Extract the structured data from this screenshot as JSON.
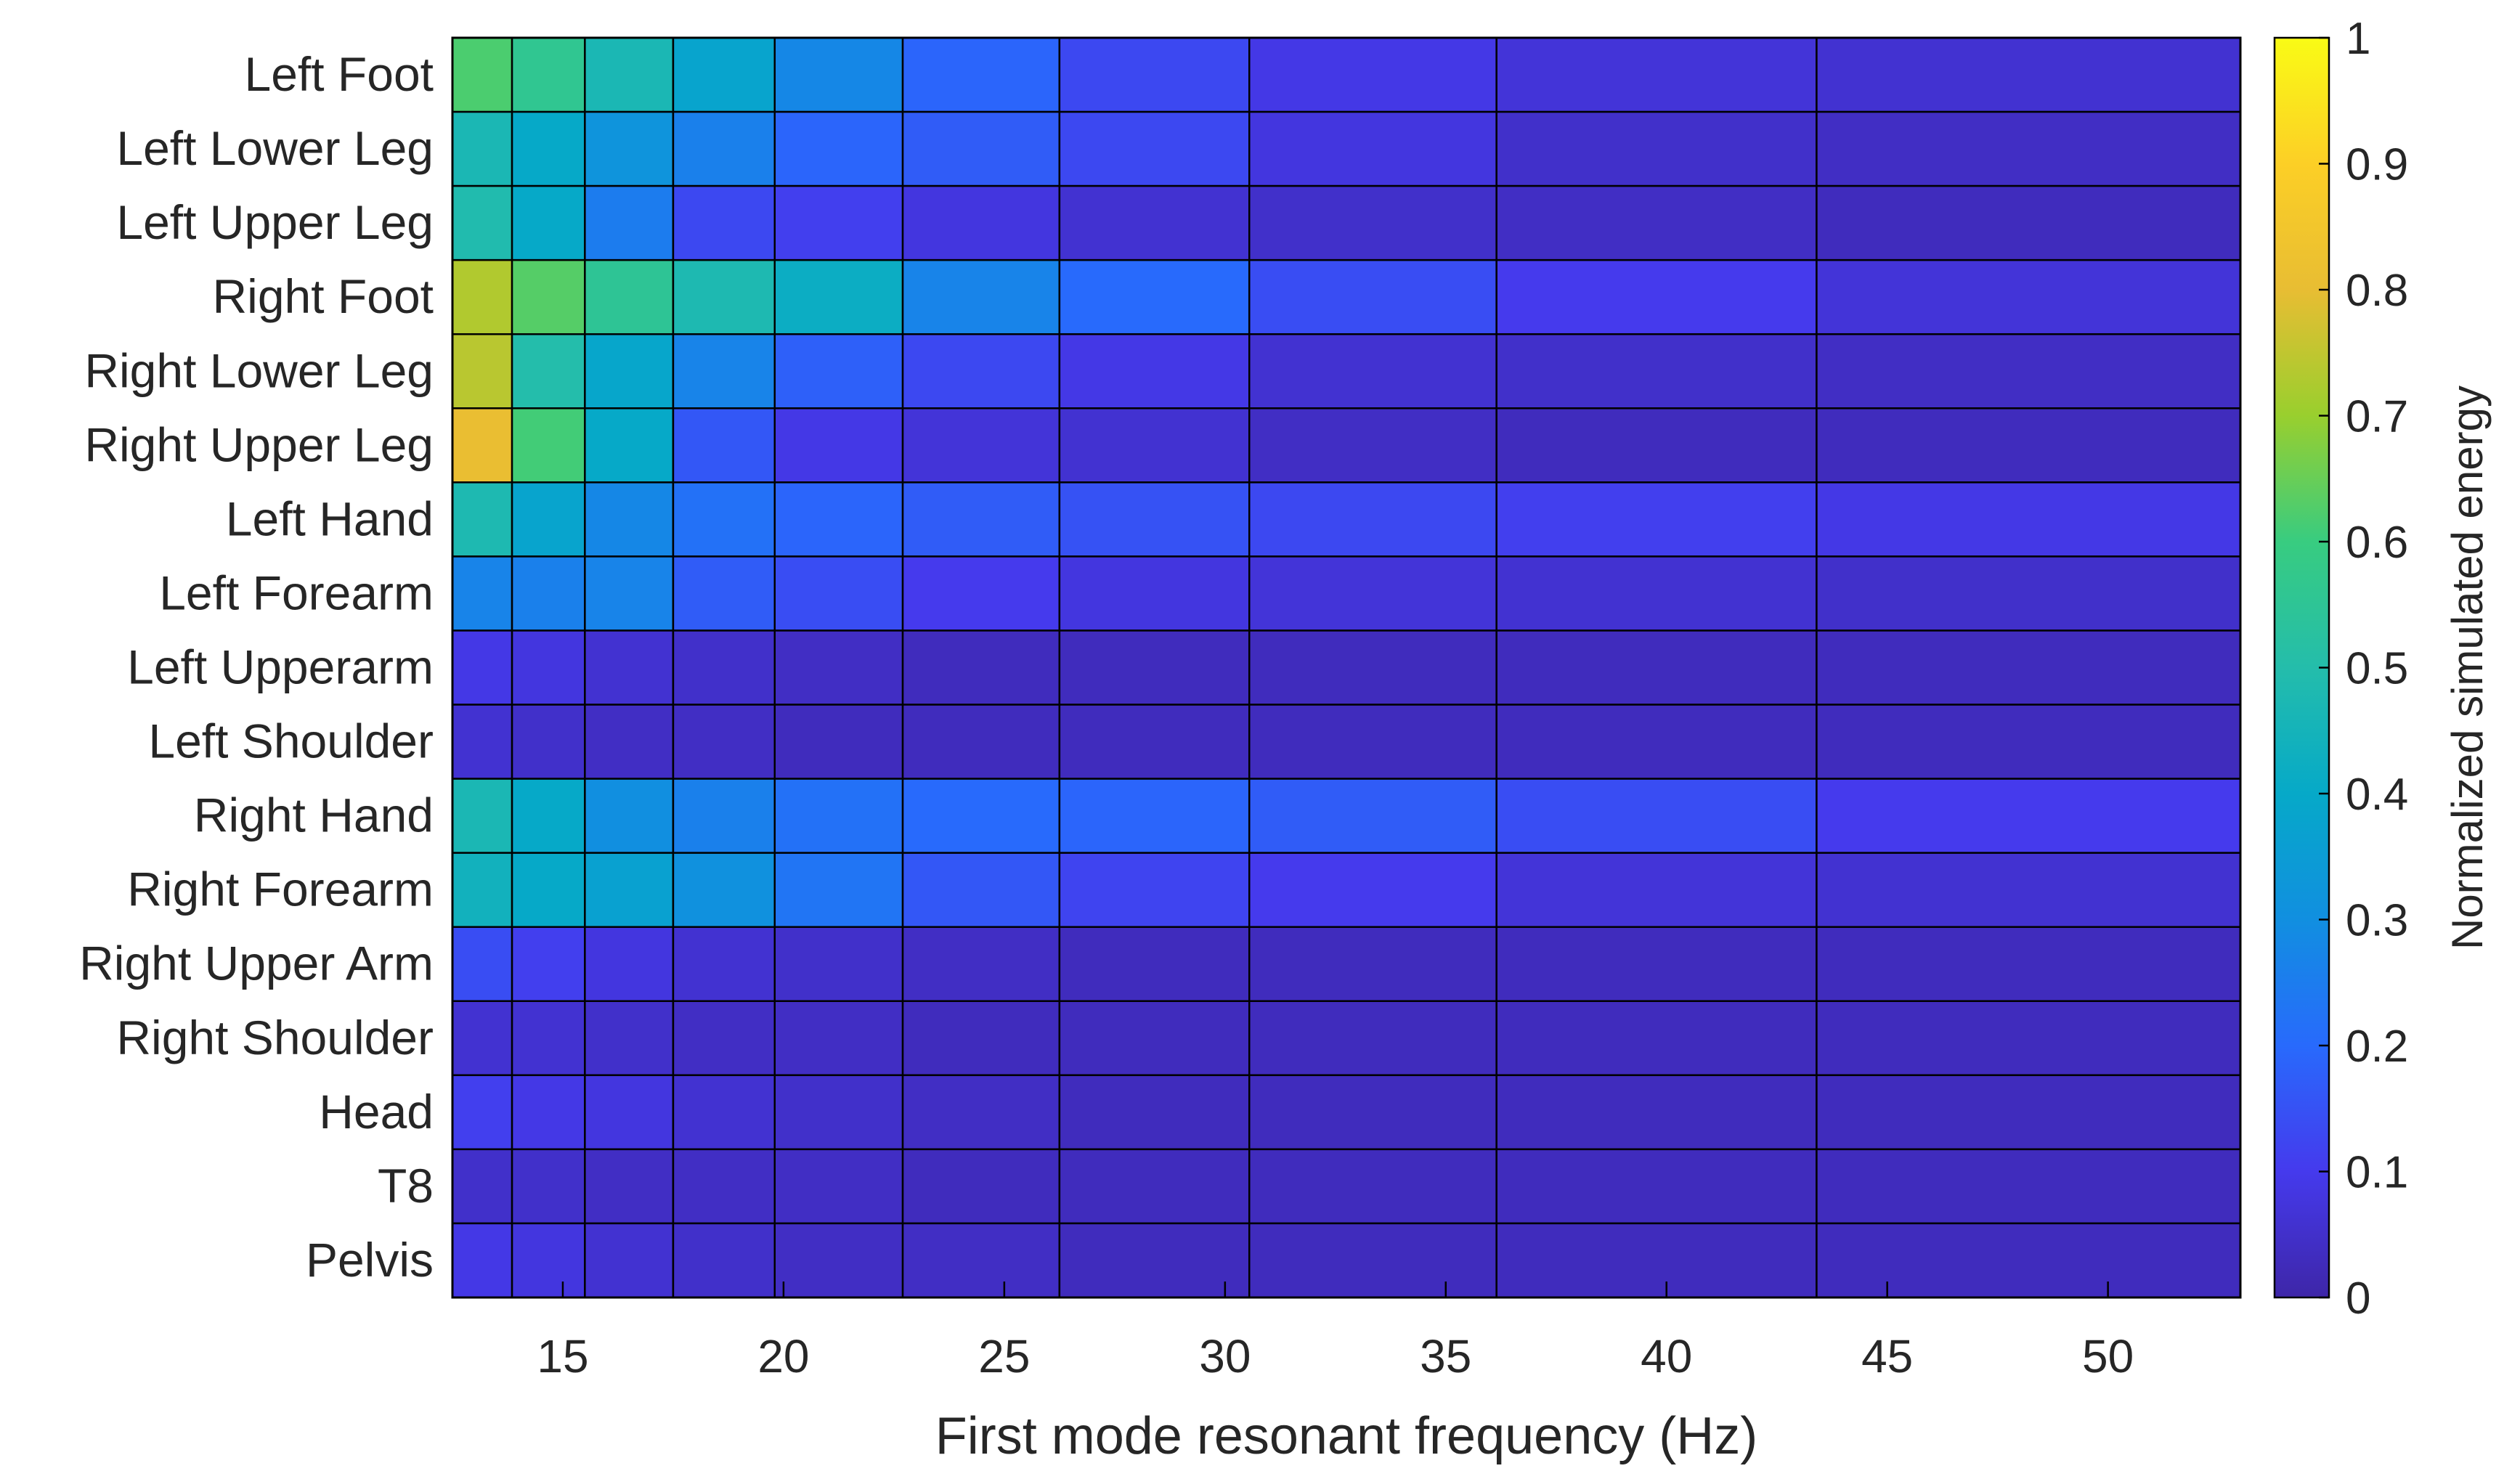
{
  "chart_data": {
    "type": "heatmap",
    "title": "",
    "xlabel": "First mode resonant frequency (Hz)",
    "ylabel": "",
    "colorbar_label": "Normalized simulated energy",
    "colormap": "parula",
    "clim": [
      0,
      1
    ],
    "x_ticks": [
      "15",
      "20",
      "25",
      "30",
      "35",
      "40",
      "45",
      "50"
    ],
    "x_tick_values": [
      15,
      20,
      25,
      30,
      35,
      40,
      45,
      50
    ],
    "colorbar_ticks": [
      "1",
      "0.9",
      "0.8",
      "0.7",
      "0.6",
      "0.5",
      "0.4",
      "0.3",
      "0.2",
      "0.1",
      "0"
    ],
    "colorbar_tick_values": [
      1,
      0.9,
      0.8,
      0.7,
      0.6,
      0.5,
      0.4,
      0.3,
      0.2,
      0.1,
      0
    ],
    "x_bin_edges": [
      12.5,
      13.85,
      15.5,
      17.5,
      19.8,
      22.7,
      26.25,
      30.55,
      36.15,
      43.4,
      53
    ],
    "rows": [
      "Left Foot",
      "Left Lower Leg",
      "Left Upper Leg",
      "Right Foot",
      "Right Lower Leg",
      "Right Upper Leg",
      "Left Hand",
      "Left Forearm",
      "Left Upperarm",
      "Left Shoulder",
      "Right Hand",
      "Right Forearm",
      "Right Upper Arm",
      "Right Shoulder",
      "Head",
      "T8",
      "Pelvis"
    ],
    "values": [
      [
        0.62,
        0.56,
        0.47,
        0.38,
        0.28,
        0.19,
        0.13,
        0.09,
        0.07,
        0.06
      ],
      [
        0.47,
        0.4,
        0.32,
        0.26,
        0.19,
        0.17,
        0.13,
        0.08,
        0.05,
        0.04
      ],
      [
        0.49,
        0.4,
        0.25,
        0.13,
        0.11,
        0.08,
        0.06,
        0.05,
        0.04,
        0.03
      ],
      [
        0.73,
        0.63,
        0.55,
        0.48,
        0.42,
        0.27,
        0.2,
        0.14,
        0.1,
        0.07
      ],
      [
        0.74,
        0.5,
        0.39,
        0.27,
        0.18,
        0.13,
        0.09,
        0.06,
        0.05,
        0.04
      ],
      [
        0.81,
        0.61,
        0.4,
        0.16,
        0.09,
        0.07,
        0.06,
        0.04,
        0.03,
        0.03
      ],
      [
        0.48,
        0.38,
        0.28,
        0.22,
        0.19,
        0.17,
        0.15,
        0.13,
        0.11,
        0.09
      ],
      [
        0.27,
        0.26,
        0.27,
        0.17,
        0.14,
        0.1,
        0.08,
        0.07,
        0.06,
        0.05
      ],
      [
        0.09,
        0.08,
        0.06,
        0.05,
        0.04,
        0.03,
        0.03,
        0.03,
        0.03,
        0.03
      ],
      [
        0.06,
        0.05,
        0.04,
        0.04,
        0.03,
        0.03,
        0.03,
        0.03,
        0.03,
        0.03
      ],
      [
        0.47,
        0.4,
        0.3,
        0.26,
        0.22,
        0.2,
        0.19,
        0.17,
        0.14,
        0.1
      ],
      [
        0.44,
        0.4,
        0.37,
        0.31,
        0.23,
        0.16,
        0.12,
        0.1,
        0.07,
        0.06
      ],
      [
        0.14,
        0.11,
        0.08,
        0.06,
        0.05,
        0.04,
        0.03,
        0.03,
        0.03,
        0.03
      ],
      [
        0.06,
        0.06,
        0.05,
        0.04,
        0.04,
        0.03,
        0.03,
        0.03,
        0.03,
        0.03
      ],
      [
        0.11,
        0.09,
        0.08,
        0.06,
        0.05,
        0.04,
        0.03,
        0.03,
        0.03,
        0.03
      ],
      [
        0.05,
        0.05,
        0.04,
        0.04,
        0.04,
        0.03,
        0.03,
        0.03,
        0.03,
        0.03
      ],
      [
        0.09,
        0.08,
        0.06,
        0.05,
        0.04,
        0.04,
        0.03,
        0.03,
        0.03,
        0.03
      ]
    ]
  }
}
